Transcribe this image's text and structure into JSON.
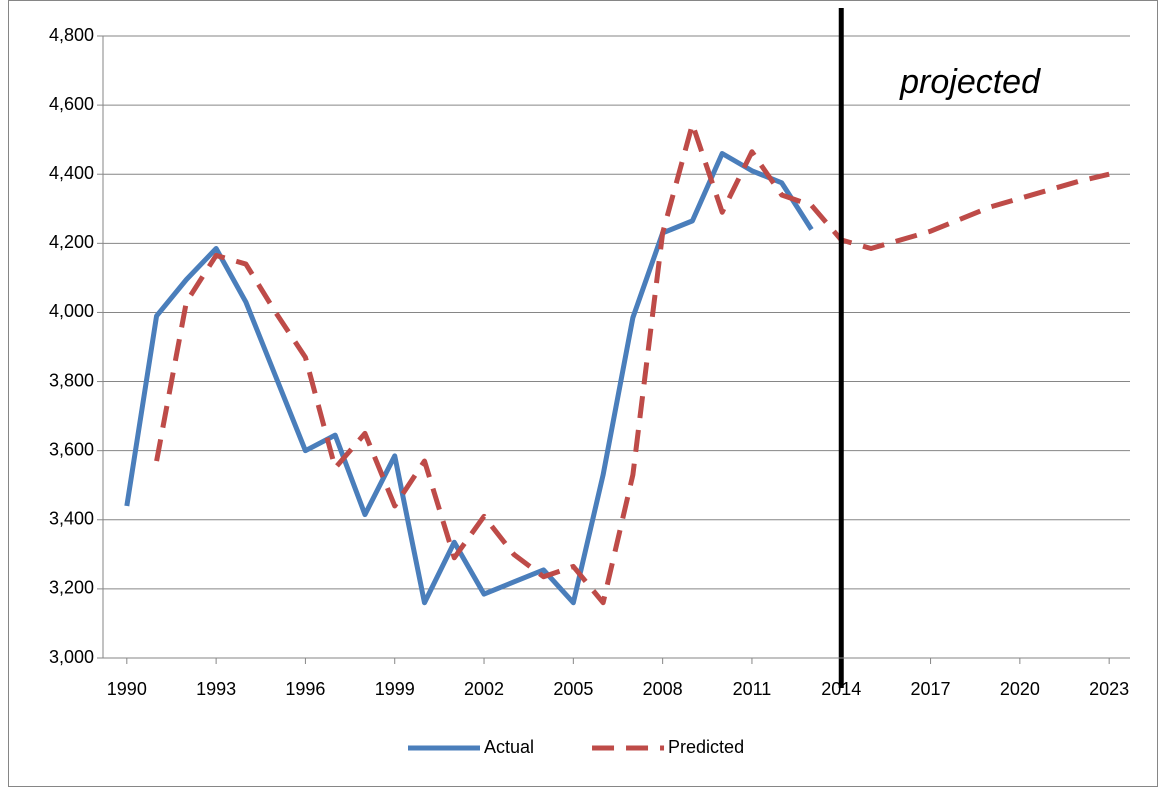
{
  "chart_data": {
    "type": "line",
    "x": [
      1990,
      1991,
      1992,
      1993,
      1994,
      1995,
      1996,
      1997,
      1998,
      1999,
      2000,
      2001,
      2002,
      2003,
      2004,
      2005,
      2006,
      2007,
      2008,
      2009,
      2010,
      2011,
      2012,
      2013,
      2014,
      2015,
      2016,
      2017,
      2018,
      2019,
      2020,
      2021,
      2022,
      2023
    ],
    "series": [
      {
        "name": "Actual",
        "color": "#4a7ebb",
        "dash": false,
        "values": [
          3440,
          3990,
          4095,
          4185,
          4030,
          3815,
          3600,
          3645,
          3415,
          3585,
          3160,
          3335,
          3185,
          3220,
          3255,
          3160,
          3530,
          3985,
          4230,
          4265,
          4460,
          4410,
          4375,
          4240,
          null,
          null,
          null,
          null,
          null,
          null,
          null,
          null,
          null,
          null
        ]
      },
      {
        "name": "Predicted",
        "color": "#be4b48",
        "dash": true,
        "values": [
          null,
          3570,
          4030,
          4165,
          4140,
          4000,
          3870,
          3550,
          3650,
          3440,
          3570,
          3290,
          3410,
          3300,
          3235,
          3265,
          3160,
          3530,
          4230,
          4545,
          4290,
          4465,
          4340,
          4310,
          4210,
          4185,
          4210,
          4235,
          4270,
          4305,
          4330,
          4355,
          4380,
          4400
        ]
      }
    ],
    "xlim": [
      1989.2,
      2023.7
    ],
    "xticks": [
      1990,
      1993,
      1996,
      1999,
      2002,
      2005,
      2008,
      2011,
      2014,
      2017,
      2020,
      2023
    ],
    "ylim": [
      3000,
      4800
    ],
    "yticks": [
      {
        "value": 3000,
        "label": "3,000"
      },
      {
        "value": 3200,
        "label": "3,200"
      },
      {
        "value": 3400,
        "label": "3,400"
      },
      {
        "value": 3600,
        "label": "3,600"
      },
      {
        "value": 3800,
        "label": "3,800"
      },
      {
        "value": 4000,
        "label": "4,000"
      },
      {
        "value": 4200,
        "label": "4,200"
      },
      {
        "value": 4400,
        "label": "4,400"
      },
      {
        "value": 4600,
        "label": "4,600"
      },
      {
        "value": 4800,
        "label": "4,800"
      }
    ],
    "grid": true,
    "legend": "bottom",
    "divider": {
      "x": 2014,
      "label": "projected"
    }
  }
}
